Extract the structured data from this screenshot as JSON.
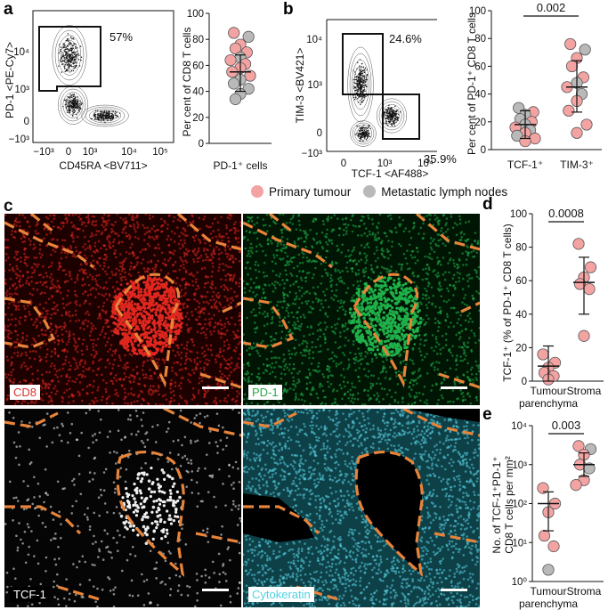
{
  "panels": {
    "a": {
      "letter": "a",
      "flow": {
        "ylabel": "PD-1 <PE-Cy7>",
        "xlabel": "CD45RA <BV711>",
        "gate_pct": "57%",
        "xticks": [
          "−10³",
          "0",
          "10³",
          "10⁴",
          "10⁵"
        ],
        "yticks": [
          "10⁴",
          "10³",
          "0",
          "−10³"
        ]
      },
      "scatter": {
        "ylabel": "Per cent of CD8 T cells",
        "xlabel": "PD-1⁺ cells",
        "yticks": [
          "0",
          "20",
          "40",
          "60",
          "80",
          "100"
        ]
      }
    },
    "b": {
      "letter": "b",
      "flow": {
        "ylabel": "TIM-3 <BV421>",
        "xlabel": "TCF-1 <AF488>",
        "gate1_pct": "24.6%",
        "gate2_pct": "35.9%",
        "xticks": [
          "0",
          "10³",
          "10⁴"
        ],
        "yticks": [
          "10⁴",
          "10³",
          "0",
          "−10³"
        ]
      },
      "scatter": {
        "ylabel": "Per cent of PD-1⁺ CD8 T cells",
        "categories": [
          "TCF-1⁺",
          "TIM-3⁺"
        ],
        "pvalue": "0.002",
        "yticks": [
          "0",
          "20",
          "40",
          "60",
          "80",
          "100"
        ]
      }
    },
    "c": {
      "letter": "c",
      "images": [
        {
          "label": "CD8",
          "label_color": "#d8312a"
        },
        {
          "label": "PD-1",
          "label_color": "#2aa84a"
        },
        {
          "label": "TCF-1",
          "label_color": "#ffffff"
        },
        {
          "label": "Cytokeratin",
          "label_color": "#4fd3e3"
        }
      ]
    },
    "d": {
      "letter": "d",
      "ylabel": "TCF-1⁺ (% of PD-1⁺ CD8 T cells)",
      "pvalue": "0.0008",
      "categories": [
        "Tumour parenchyma",
        "Stroma"
      ],
      "cat_line1": [
        "Tumour",
        "Stroma"
      ],
      "cat_line2": [
        "parenchyma",
        ""
      ],
      "yticks": [
        "0",
        "20",
        "40",
        "60",
        "80",
        "100"
      ]
    },
    "e": {
      "letter": "e",
      "ylabel_line1": "No. of TCF-1⁺PD-1⁺",
      "ylabel_line2": "CD8 T cells per mm²",
      "pvalue": "0.003",
      "categories": [
        "Tumour parenchyma",
        "Stroma"
      ],
      "cat_line1": [
        "Tumour",
        "Stroma"
      ],
      "cat_line2": [
        "parenchyma",
        ""
      ],
      "yticks": [
        "10⁰",
        "10¹",
        "10²",
        "10³",
        "10⁴"
      ]
    }
  },
  "legend": {
    "primary_label": "Primary tumour",
    "primary_color": "#f4a3a3",
    "metastatic_label": "Metastatic lymph nodes",
    "metastatic_color": "#b9b9b9"
  },
  "chart_data": [
    {
      "type": "scatter",
      "panel": "a",
      "ylabel": "Per cent of CD8 T cells",
      "xlabel": "PD-1⁺ cells",
      "ylim": [
        0,
        100
      ],
      "summary": {
        "mean": 55,
        "sd_low": 40,
        "sd_high": 68
      },
      "points": [
        {
          "y": 85,
          "group": "primary"
        },
        {
          "y": 82,
          "group": "metastatic"
        },
        {
          "y": 76,
          "group": "primary"
        },
        {
          "y": 73,
          "group": "primary"
        },
        {
          "y": 70,
          "group": "primary"
        },
        {
          "y": 66,
          "group": "metastatic"
        },
        {
          "y": 64,
          "group": "primary"
        },
        {
          "y": 61,
          "group": "primary"
        },
        {
          "y": 58,
          "group": "primary"
        },
        {
          "y": 55,
          "group": "primary"
        },
        {
          "y": 52,
          "group": "primary"
        },
        {
          "y": 49,
          "group": "metastatic"
        },
        {
          "y": 46,
          "group": "metastatic"
        },
        {
          "y": 42,
          "group": "metastatic"
        },
        {
          "y": 38,
          "group": "metastatic"
        },
        {
          "y": 34,
          "group": "metastatic"
        }
      ]
    },
    {
      "type": "scatter",
      "panel": "b",
      "ylabel": "Per cent of PD-1⁺ CD8 T cells",
      "categories": [
        "TCF-1⁺",
        "TIM-3⁺"
      ],
      "ylim": [
        0,
        100
      ],
      "summary": [
        {
          "mean": 18,
          "sd_low": 8,
          "sd_high": 28
        },
        {
          "mean": 45,
          "sd_low": 27,
          "sd_high": 64
        }
      ],
      "points": [
        {
          "cat": 0,
          "y": 30,
          "group": "metastatic"
        },
        {
          "cat": 0,
          "y": 27,
          "group": "primary"
        },
        {
          "cat": 0,
          "y": 25,
          "group": "metastatic"
        },
        {
          "cat": 0,
          "y": 22,
          "group": "metastatic"
        },
        {
          "cat": 0,
          "y": 20,
          "group": "primary"
        },
        {
          "cat": 0,
          "y": 18,
          "group": "metastatic"
        },
        {
          "cat": 0,
          "y": 16,
          "group": "primary"
        },
        {
          "cat": 0,
          "y": 14,
          "group": "metastatic"
        },
        {
          "cat": 0,
          "y": 12,
          "group": "primary"
        },
        {
          "cat": 0,
          "y": 10,
          "group": "metastatic"
        },
        {
          "cat": 0,
          "y": 8,
          "group": "primary"
        },
        {
          "cat": 0,
          "y": 6,
          "group": "primary"
        },
        {
          "cat": 1,
          "y": 76,
          "group": "primary"
        },
        {
          "cat": 1,
          "y": 72,
          "group": "metastatic"
        },
        {
          "cat": 1,
          "y": 66,
          "group": "primary"
        },
        {
          "cat": 1,
          "y": 60,
          "group": "primary"
        },
        {
          "cat": 1,
          "y": 52,
          "group": "primary"
        },
        {
          "cat": 1,
          "y": 48,
          "group": "metastatic"
        },
        {
          "cat": 1,
          "y": 45,
          "group": "primary"
        },
        {
          "cat": 1,
          "y": 40,
          "group": "metastatic"
        },
        {
          "cat": 1,
          "y": 35,
          "group": "primary"
        },
        {
          "cat": 1,
          "y": 28,
          "group": "primary"
        },
        {
          "cat": 1,
          "y": 18,
          "group": "primary"
        },
        {
          "cat": 1,
          "y": 12,
          "group": "primary"
        }
      ]
    },
    {
      "type": "scatter",
      "panel": "d",
      "ylabel": "TCF-1⁺ (% of PD-1⁺ CD8 T cells)",
      "categories": [
        "Tumour parenchyma",
        "Stroma"
      ],
      "ylim": [
        0,
        100
      ],
      "summary": [
        {
          "mean": 9,
          "sd_low": 0,
          "sd_high": 21
        },
        {
          "mean": 59,
          "sd_low": 40,
          "sd_high": 74
        }
      ],
      "points": [
        {
          "cat": 0,
          "y": 16,
          "group": "primary"
        },
        {
          "cat": 0,
          "y": 11,
          "group": "primary"
        },
        {
          "cat": 0,
          "y": 8,
          "group": "primary"
        },
        {
          "cat": 0,
          "y": 5,
          "group": "primary"
        },
        {
          "cat": 0,
          "y": 3,
          "group": "primary"
        },
        {
          "cat": 0,
          "y": 1,
          "group": "primary"
        },
        {
          "cat": 1,
          "y": 82,
          "group": "primary"
        },
        {
          "cat": 1,
          "y": 68,
          "group": "primary"
        },
        {
          "cat": 1,
          "y": 62,
          "group": "primary"
        },
        {
          "cat": 1,
          "y": 58,
          "group": "primary"
        },
        {
          "cat": 1,
          "y": 55,
          "group": "primary"
        },
        {
          "cat": 1,
          "y": 27,
          "group": "primary"
        }
      ]
    },
    {
      "type": "scatter",
      "panel": "e",
      "ylabel": "No. of TCF-1⁺PD-1⁺ CD8 T cells per mm²",
      "categories": [
        "Tumour parenchyma",
        "Stroma"
      ],
      "yscale": "log",
      "ylim": [
        1,
        10000
      ],
      "summary": [
        {
          "mean": 100,
          "sd_low": 20,
          "sd_high": 200
        },
        {
          "mean": 1000,
          "sd_low": 500,
          "sd_high": 2000
        }
      ],
      "points": [
        {
          "cat": 0,
          "y": 250,
          "group": "primary"
        },
        {
          "cat": 0,
          "y": 100,
          "group": "primary"
        },
        {
          "cat": 0,
          "y": 60,
          "group": "primary"
        },
        {
          "cat": 0,
          "y": 15,
          "group": "primary"
        },
        {
          "cat": 0,
          "y": 8,
          "group": "primary"
        },
        {
          "cat": 0,
          "y": 2,
          "group": "metastatic"
        },
        {
          "cat": 1,
          "y": 3000,
          "group": "primary"
        },
        {
          "cat": 1,
          "y": 2500,
          "group": "metastatic"
        },
        {
          "cat": 1,
          "y": 1800,
          "group": "primary"
        },
        {
          "cat": 1,
          "y": 1000,
          "group": "primary"
        },
        {
          "cat": 1,
          "y": 800,
          "group": "metastatic"
        },
        {
          "cat": 1,
          "y": 400,
          "group": "primary"
        },
        {
          "cat": 1,
          "y": 300,
          "group": "primary"
        }
      ]
    }
  ]
}
